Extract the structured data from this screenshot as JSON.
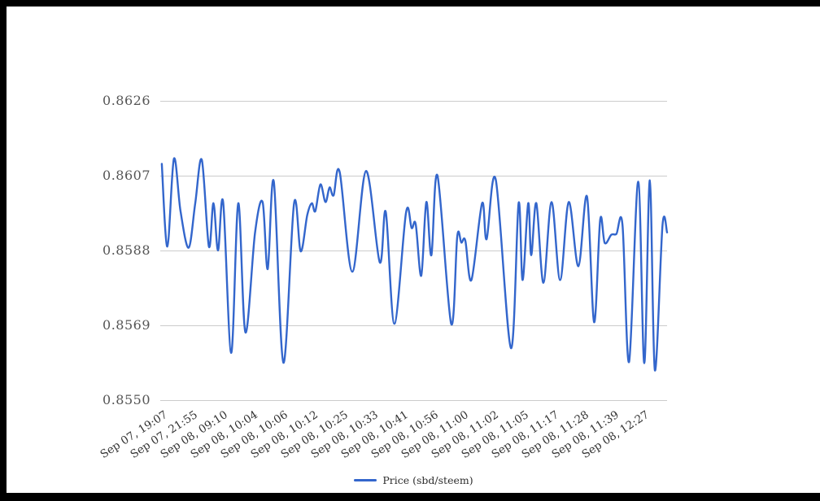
{
  "chart_data": {
    "type": "line",
    "title": "",
    "xlabel": "",
    "ylabel": "",
    "legend": {
      "position": "bottom",
      "entries": [
        {
          "label": "Price (sbd/steem)",
          "color": "#3366cc"
        }
      ]
    },
    "y_axis": {
      "range": [
        0.855,
        0.8626
      ],
      "tick_values": [
        0.8626,
        0.8607,
        0.8588,
        0.8569,
        0.855
      ],
      "tick_labels": [
        "0.8626",
        "0.8607",
        "0.8588",
        "0.8569",
        "0.8550"
      ],
      "grid": true
    },
    "x_axis": {
      "slanted_labels": true,
      "tick_labels": [
        "Sep 07, 19:07",
        "Sep 07, 21:55",
        "Sep 08, 09:10",
        "Sep 08, 10:04",
        "Sep 08, 10:06",
        "Sep 08, 10:12",
        "Sep 08, 10:25",
        "Sep 08, 10:33",
        "Sep 08, 10:41",
        "Sep 08, 10:56",
        "Sep 08, 11:00",
        "Sep 08, 11:02",
        "Sep 08, 11:05",
        "Sep 08, 11:17",
        "Sep 08, 11:28",
        "Sep 08, 11:39",
        "Sep 08, 12:27"
      ]
    },
    "series": [
      {
        "name": "Price (sbd/steem)",
        "color": "#3366cc",
        "points": [
          [
            0.003,
            0.861
          ],
          [
            0.014,
            0.8589
          ],
          [
            0.027,
            0.86113
          ],
          [
            0.04,
            0.8598
          ],
          [
            0.056,
            0.85887
          ],
          [
            0.069,
            0.86
          ],
          [
            0.082,
            0.8611
          ],
          [
            0.096,
            0.8589
          ],
          [
            0.105,
            0.86
          ],
          [
            0.114,
            0.8588
          ],
          [
            0.124,
            0.86003
          ],
          [
            0.14,
            0.8562
          ],
          [
            0.154,
            0.86
          ],
          [
            0.168,
            0.85672
          ],
          [
            0.187,
            0.85925
          ],
          [
            0.202,
            0.86003
          ],
          [
            0.212,
            0.85833
          ],
          [
            0.224,
            0.86055
          ],
          [
            0.243,
            0.85595
          ],
          [
            0.264,
            0.86
          ],
          [
            0.277,
            0.85878
          ],
          [
            0.29,
            0.8597
          ],
          [
            0.299,
            0.86
          ],
          [
            0.306,
            0.8598
          ],
          [
            0.316,
            0.86048
          ],
          [
            0.326,
            0.86003
          ],
          [
            0.334,
            0.8604
          ],
          [
            0.342,
            0.8602
          ],
          [
            0.354,
            0.8608
          ],
          [
            0.379,
            0.85826
          ],
          [
            0.406,
            0.86082
          ],
          [
            0.433,
            0.8585
          ],
          [
            0.445,
            0.85978
          ],
          [
            0.462,
            0.85694
          ],
          [
            0.485,
            0.85977
          ],
          [
            0.496,
            0.85937
          ],
          [
            0.504,
            0.85947
          ],
          [
            0.515,
            0.85816
          ],
          [
            0.525,
            0.86003
          ],
          [
            0.535,
            0.85868
          ],
          [
            0.547,
            0.8607
          ],
          [
            0.574,
            0.85694
          ],
          [
            0.586,
            0.85916
          ],
          [
            0.594,
            0.859
          ],
          [
            0.602,
            0.85905
          ],
          [
            0.614,
            0.85805
          ],
          [
            0.635,
            0.86
          ],
          [
            0.644,
            0.85909
          ],
          [
            0.662,
            0.8606
          ],
          [
            0.692,
            0.85632
          ],
          [
            0.707,
            0.86
          ],
          [
            0.715,
            0.85805
          ],
          [
            0.726,
            0.86
          ],
          [
            0.732,
            0.85868
          ],
          [
            0.742,
            0.86
          ],
          [
            0.756,
            0.85798
          ],
          [
            0.772,
            0.86003
          ],
          [
            0.789,
            0.85805
          ],
          [
            0.806,
            0.86003
          ],
          [
            0.825,
            0.8584
          ],
          [
            0.842,
            0.86017
          ],
          [
            0.856,
            0.85698
          ],
          [
            0.868,
            0.85958
          ],
          [
            0.877,
            0.85899
          ],
          [
            0.89,
            0.8592
          ],
          [
            0.9,
            0.85922
          ],
          [
            0.912,
            0.85945
          ],
          [
            0.925,
            0.85597
          ],
          [
            0.943,
            0.86055
          ],
          [
            0.955,
            0.85594
          ],
          [
            0.966,
            0.86058
          ],
          [
            0.976,
            0.85576
          ],
          [
            0.991,
            0.85944
          ],
          [
            1.0,
            0.85926
          ]
        ]
      }
    ],
    "colors": {
      "line": "#3366cc",
      "grid": "#cccccc",
      "y_label_text": "#555555",
      "x_label_text": "#333333",
      "legend_text": "#2e2e2e",
      "frame": "#000000",
      "background": "#ffffff"
    }
  }
}
